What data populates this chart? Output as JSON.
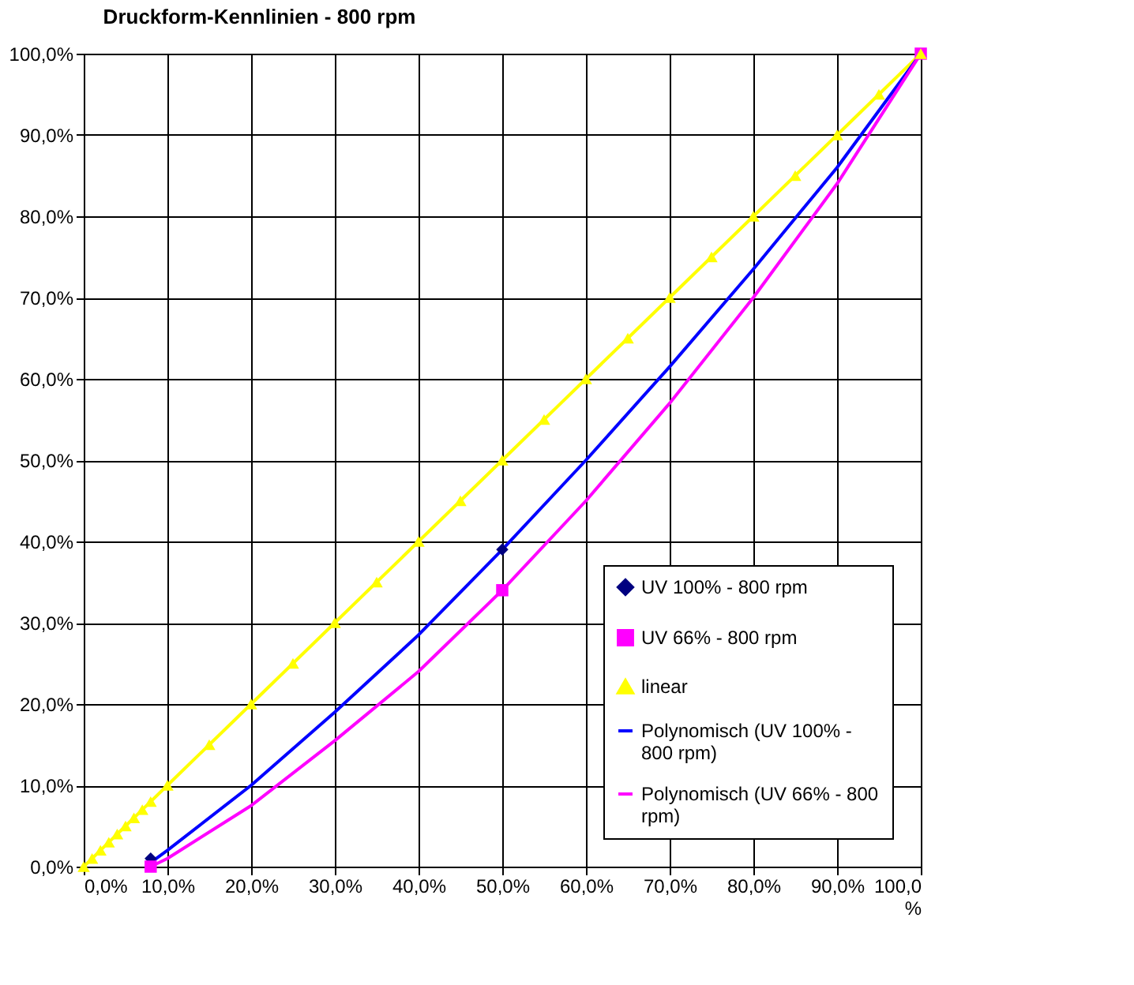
{
  "chart_data": {
    "type": "line",
    "title": "Druckform-Kennlinien - 800 rpm",
    "xlim": [
      0,
      100
    ],
    "ylim": [
      0,
      100
    ],
    "xticks": [
      {
        "value": 0,
        "label": "0,0%"
      },
      {
        "value": 10,
        "label": "10,0%"
      },
      {
        "value": 20,
        "label": "20,0%"
      },
      {
        "value": 30,
        "label": "30,0%"
      },
      {
        "value": 40,
        "label": "40,0%"
      },
      {
        "value": 50,
        "label": "50,0%"
      },
      {
        "value": 60,
        "label": "60,0%"
      },
      {
        "value": 70,
        "label": "70,0%"
      },
      {
        "value": 80,
        "label": "80,0%"
      },
      {
        "value": 90,
        "label": "90,0%"
      },
      {
        "value": 100,
        "label": "100,0 %"
      }
    ],
    "yticks": [
      {
        "value": 0,
        "label": "0,0%"
      },
      {
        "value": 10,
        "label": "10,0%"
      },
      {
        "value": 20,
        "label": "20,0%"
      },
      {
        "value": 30,
        "label": "30,0%"
      },
      {
        "value": 40,
        "label": "40,0%"
      },
      {
        "value": 50,
        "label": "50,0%"
      },
      {
        "value": 60,
        "label": "60,0%"
      },
      {
        "value": 70,
        "label": "70,0%"
      },
      {
        "value": 80,
        "label": "80,0%"
      },
      {
        "value": 90,
        "label": "90,0%"
      },
      {
        "value": 100,
        "label": "100,0%"
      }
    ],
    "grid": true,
    "legend": "bottom right",
    "series": [
      {
        "name": "UV 100% - 800 rpm",
        "type": "scatter",
        "marker": "diamond",
        "color": "#000080",
        "x": [
          8,
          50
        ],
        "values": [
          1,
          39
        ]
      },
      {
        "name": "UV 66% - 800 rpm",
        "type": "scatter",
        "marker": "square",
        "color": "#ff00ff",
        "x": [
          8,
          50,
          100
        ],
        "values": [
          0,
          34,
          100
        ]
      },
      {
        "name": "linear",
        "marker": "triangle",
        "color": "#ffff00",
        "x": [
          0,
          1,
          2,
          3,
          4,
          5,
          6,
          7,
          8,
          10,
          15,
          20,
          25,
          30,
          35,
          40,
          45,
          50,
          55,
          60,
          65,
          70,
          75,
          80,
          85,
          90,
          95,
          100
        ],
        "values": [
          0,
          1,
          2,
          3,
          4,
          5,
          6,
          7,
          8,
          10,
          15,
          20,
          25,
          30,
          35,
          40,
          45,
          50,
          55,
          60,
          65,
          70,
          75,
          80,
          85,
          90,
          95,
          100
        ]
      },
      {
        "name": "Polynomisch (UV 100% - 800 rpm)",
        "marker": "none",
        "color": "#0000ff",
        "x": [
          8,
          10,
          20,
          30,
          40,
          50,
          60,
          70,
          80,
          90,
          100
        ],
        "values": [
          0.5,
          2,
          10,
          19,
          28.5,
          39,
          50,
          61.5,
          73.5,
          86,
          100
        ]
      },
      {
        "name": "Polynomisch (UV 66% - 800 rpm)",
        "marker": "none",
        "color": "#ff00ff",
        "x": [
          8,
          10,
          20,
          30,
          40,
          50,
          60,
          70,
          80,
          90,
          100
        ],
        "values": [
          0,
          1,
          7.5,
          15.5,
          24,
          34,
          45,
          57,
          70,
          84,
          100
        ]
      }
    ]
  }
}
